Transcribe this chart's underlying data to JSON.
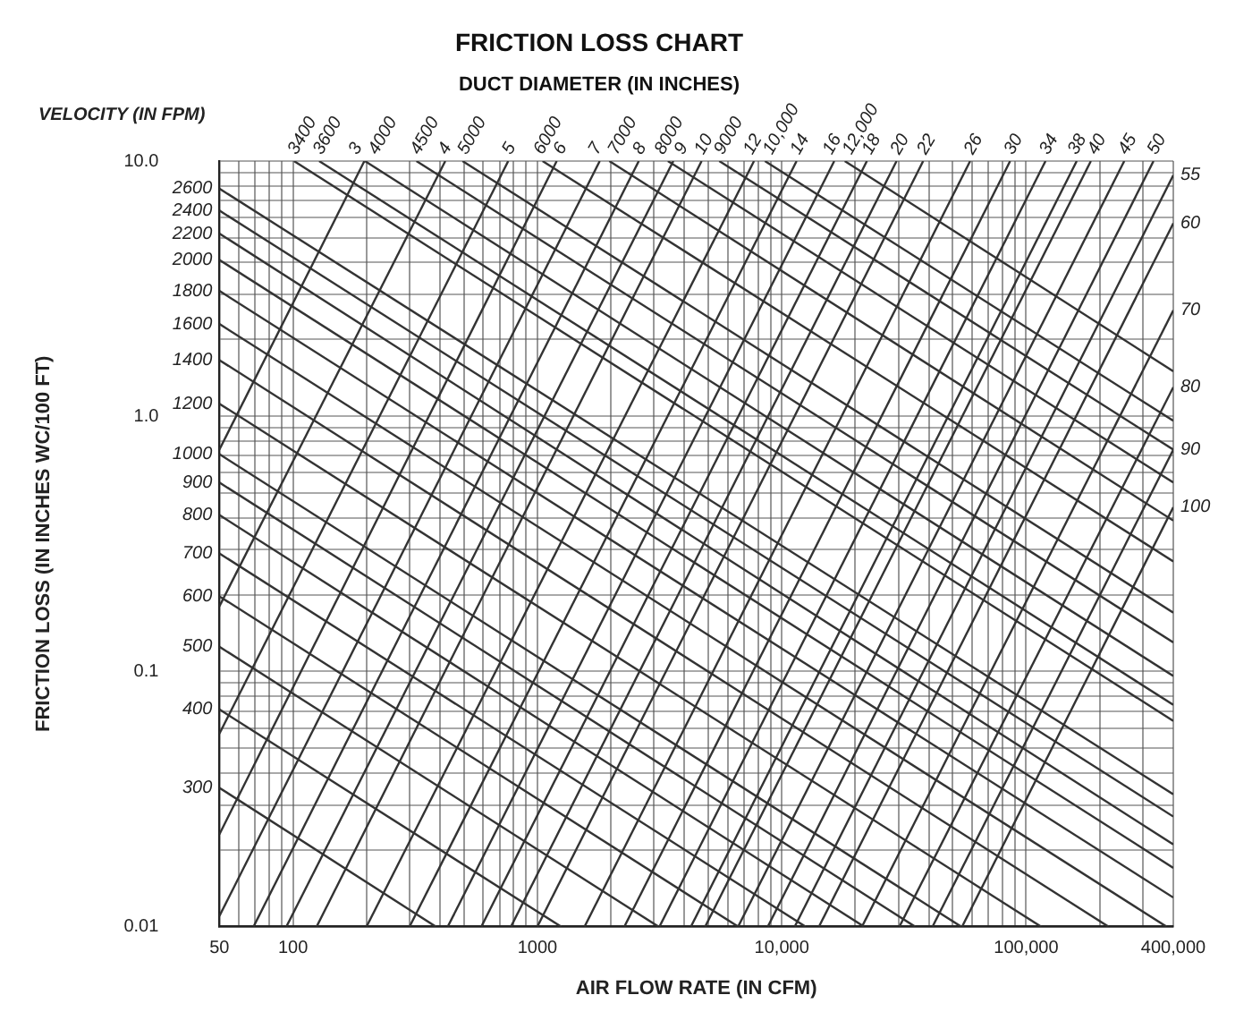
{
  "chart_data": {
    "type": "line",
    "title": "FRICTION LOSS CHART",
    "subtitle": "DUCT DIAMETER (IN INCHES)",
    "xlabel": "AIR FLOW RATE (IN CFM)",
    "ylabel": "FRICTION LOSS (IN INCHES WC/100 FT)",
    "annotations": [
      "VELOCITY (IN FPM)"
    ],
    "log": "xy",
    "grid": true,
    "marker": "none",
    "line_style": "solid",
    "xlim": [
      50,
      400000
    ],
    "ylim": [
      0.01,
      10
    ],
    "xticks": [
      50,
      {
        "value": 60,
        "label": null
      },
      {
        "value": 70,
        "label": null
      },
      {
        "value": 80,
        "label": null
      },
      {
        "value": 90,
        "label": null
      },
      100,
      {
        "value": 200,
        "label": null
      },
      {
        "value": 300,
        "label": null
      },
      {
        "value": 400,
        "label": null
      },
      {
        "value": 500,
        "label": null
      },
      {
        "value": 600,
        "label": null
      },
      {
        "value": 700,
        "label": null
      },
      {
        "value": 800,
        "label": null
      },
      {
        "value": 900,
        "label": null
      },
      1000,
      {
        "value": 2000,
        "label": null
      },
      {
        "value": 3000,
        "label": null
      },
      {
        "value": 4000,
        "label": null
      },
      {
        "value": 5000,
        "label": null
      },
      {
        "value": 6000,
        "label": null
      },
      {
        "value": 7000,
        "label": null
      },
      {
        "value": 8000,
        "label": null
      },
      {
        "value": 9000,
        "label": null
      },
      {
        "value": 10000,
        "label": "10,000"
      },
      {
        "value": 20000,
        "label": null
      },
      {
        "value": 30000,
        "label": null
      },
      {
        "value": 40000,
        "label": null
      },
      {
        "value": 50000,
        "label": null
      },
      {
        "value": 60000,
        "label": null
      },
      {
        "value": 70000,
        "label": null
      },
      {
        "value": 80000,
        "label": null
      },
      {
        "value": 90000,
        "label": null
      },
      {
        "value": 100000,
        "label": "100,000"
      },
      {
        "value": 200000,
        "label": null
      },
      {
        "value": 300000,
        "label": null
      },
      {
        "value": 400000,
        "label": "400,000"
      }
    ],
    "yticks": [
      0.01,
      {
        "value": 0.02,
        "label": null
      },
      {
        "value": 0.03,
        "label": null
      },
      {
        "value": 0.04,
        "label": null
      },
      {
        "value": 0.05,
        "label": null
      },
      {
        "value": 0.06,
        "label": null
      },
      {
        "value": 0.07,
        "label": null
      },
      {
        "value": 0.08,
        "label": null
      },
      {
        "value": 0.09,
        "label": null
      },
      0.1,
      {
        "value": 0.2,
        "label": null
      },
      {
        "value": 0.3,
        "label": null
      },
      {
        "value": 0.4,
        "label": null
      },
      {
        "value": 0.5,
        "label": null
      },
      {
        "value": 0.6,
        "label": null
      },
      {
        "value": 0.7,
        "label": null
      },
      {
        "value": 0.8,
        "label": null
      },
      {
        "value": 0.9,
        "label": null
      },
      {
        "value": 1,
        "label": "1.0"
      },
      {
        "value": 2,
        "label": null
      },
      {
        "value": 3,
        "label": null
      },
      {
        "value": 4,
        "label": null
      },
      {
        "value": 5,
        "label": null
      },
      {
        "value": 6,
        "label": null
      },
      {
        "value": 7,
        "label": null
      },
      {
        "value": 8,
        "label": null
      },
      {
        "value": 9,
        "label": null
      },
      {
        "value": 10,
        "label": "10.0"
      }
    ],
    "series": [
      {
        "name": "3",
        "color": "#333333",
        "x": [
          50,
          196
        ],
        "values": [
          0.74,
          10
        ]
      },
      {
        "name": "4",
        "color": "#333333",
        "x": [
          50,
          420
        ],
        "values": [
          0.18,
          10
        ]
      },
      {
        "name": "5",
        "color": "#333333",
        "x": [
          50,
          760
        ],
        "values": [
          0.057,
          10
        ]
      },
      {
        "name": "6",
        "color": "#333333",
        "x": [
          50,
          1200
        ],
        "values": [
          0.023,
          10
        ]
      },
      {
        "name": "7",
        "color": "#333333",
        "x": [
          50,
          1800
        ],
        "values": [
          0.011,
          10
        ]
      },
      {
        "name": "8",
        "color": "#333333",
        "x": [
          69,
          2600
        ],
        "values": [
          0.01,
          10
        ]
      },
      {
        "name": "9",
        "color": "#333333",
        "x": [
          94,
          3600
        ],
        "values": [
          0.01,
          10
        ]
      },
      {
        "name": "10",
        "color": "#333333",
        "x": [
          125,
          4700
        ],
        "values": [
          0.01,
          10
        ]
      },
      {
        "name": "12",
        "color": "#333333",
        "x": [
          200,
          7700
        ],
        "values": [
          0.01,
          10
        ]
      },
      {
        "name": "14",
        "color": "#333333",
        "x": [
          300,
          11500
        ],
        "values": [
          0.01,
          10
        ]
      },
      {
        "name": "16",
        "color": "#333333",
        "x": [
          430,
          16400
        ],
        "values": [
          0.01,
          10
        ]
      },
      {
        "name": "18",
        "color": "#333333",
        "x": [
          590,
          22300
        ],
        "values": [
          0.01,
          10
        ]
      },
      {
        "name": "20",
        "color": "#333333",
        "x": [
          780,
          29500
        ],
        "values": [
          0.01,
          10
        ]
      },
      {
        "name": "22",
        "color": "#333333",
        "x": [
          1000,
          37900
        ],
        "values": [
          0.01,
          10
        ]
      },
      {
        "name": "26",
        "color": "#333333",
        "x": [
          1560,
          59000
        ],
        "values": [
          0.01,
          10
        ]
      },
      {
        "name": "30",
        "color": "#333333",
        "x": [
          2270,
          86000
        ],
        "values": [
          0.01,
          10
        ]
      },
      {
        "name": "34",
        "color": "#333333",
        "x": [
          3160,
          120000
        ],
        "values": [
          0.01,
          10
        ]
      },
      {
        "name": "38",
        "color": "#333333",
        "x": [
          4250,
          161000
        ],
        "values": [
          0.01,
          10
        ]
      },
      {
        "name": "40",
        "color": "#333333",
        "x": [
          4860,
          184000
        ],
        "values": [
          0.01,
          10
        ]
      },
      {
        "name": "45",
        "color": "#333333",
        "x": [
          6630,
          252000
        ],
        "values": [
          0.01,
          10
        ]
      },
      {
        "name": "50",
        "color": "#333333",
        "x": [
          8770,
          332000
        ],
        "values": [
          0.01,
          10
        ]
      },
      {
        "name": "55",
        "color": "#333333",
        "x": [
          11300,
          400000
        ],
        "values": [
          0.01,
          8.8
        ]
      },
      {
        "name": "60",
        "color": "#333333",
        "x": [
          14200,
          400000
        ],
        "values": [
          0.01,
          5.7
        ]
      },
      {
        "name": "70",
        "color": "#333333",
        "x": [
          21300,
          400000
        ],
        "values": [
          0.01,
          2.6
        ]
      },
      {
        "name": "80",
        "color": "#333333",
        "x": [
          30300,
          400000
        ],
        "values": [
          0.01,
          1.3
        ]
      },
      {
        "name": "90",
        "color": "#333333",
        "x": [
          41400,
          400000
        ],
        "values": [
          0.01,
          0.74
        ]
      },
      {
        "name": "100",
        "color": "#333333",
        "x": [
          54700,
          400000
        ],
        "values": [
          0.01,
          0.44
        ]
      },
      {
        "name": "300",
        "color": "#333333",
        "x": [
          50,
          384
        ],
        "values": [
          0.035,
          0.01
        ]
      },
      {
        "name": "400",
        "color": "#333333",
        "x": [
          50,
          1250
        ],
        "values": [
          0.071,
          0.01
        ]
      },
      {
        "name": "500",
        "color": "#333333",
        "x": [
          50,
          3130
        ],
        "values": [
          0.125,
          0.01
        ]
      },
      {
        "name": "600",
        "color": "#333333",
        "x": [
          50,
          6630
        ],
        "values": [
          0.197,
          0.01
        ]
      },
      {
        "name": "700",
        "color": "#333333",
        "x": [
          50,
          12500
        ],
        "values": [
          0.29,
          0.01
        ]
      },
      {
        "name": "800",
        "color": "#333333",
        "x": [
          50,
          21700
        ],
        "values": [
          0.41,
          0.01
        ]
      },
      {
        "name": "900",
        "color": "#333333",
        "x": [
          50,
          35100
        ],
        "values": [
          0.55,
          0.01
        ]
      },
      {
        "name": "1000",
        "color": "#333333",
        "x": [
          50,
          54200
        ],
        "values": [
          0.71,
          0.01
        ]
      },
      {
        "name": "1200",
        "color": "#333333",
        "x": [
          50,
          115000
        ],
        "values": [
          1.12,
          0.01
        ]
      },
      {
        "name": "1400",
        "color": "#333333",
        "x": [
          50,
          217000
        ],
        "values": [
          1.66,
          0.01
        ]
      },
      {
        "name": "1600",
        "color": "#333333",
        "x": [
          50,
          375000
        ],
        "values": [
          2.3,
          0.01
        ]
      },
      {
        "name": "1800",
        "color": "#333333",
        "x": [
          50,
          400000
        ],
        "values": [
          3.1,
          0.013
        ]
      },
      {
        "name": "2000",
        "color": "#333333",
        "x": [
          50,
          400000
        ],
        "values": [
          4.1,
          0.017
        ]
      },
      {
        "name": "2200",
        "color": "#333333",
        "x": [
          50,
          400000
        ],
        "values": [
          5.2,
          0.021
        ]
      },
      {
        "name": "2400",
        "color": "#333333",
        "x": [
          50,
          400000
        ],
        "values": [
          6.4,
          0.027
        ]
      },
      {
        "name": "2600",
        "color": "#333333",
        "x": [
          50,
          400000
        ],
        "values": [
          7.8,
          0.033
        ]
      },
      {
        "name": "3400",
        "color": "#333333",
        "x": [
          101,
          400000
        ],
        "values": [
          10,
          0.064
        ]
      },
      {
        "name": "3600",
        "color": "#333333",
        "x": [
          128,
          400000
        ],
        "values": [
          10,
          0.074
        ]
      },
      {
        "name": "4000",
        "color": "#333333",
        "x": [
          197,
          400000
        ],
        "values": [
          10,
          0.096
        ]
      },
      {
        "name": "4500",
        "color": "#333333",
        "x": [
          320,
          400000
        ],
        "values": [
          10,
          0.13
        ]
      },
      {
        "name": "5000",
        "color": "#333333",
        "x": [
          494,
          400000
        ],
        "values": [
          10,
          0.17
        ]
      },
      {
        "name": "6000",
        "color": "#333333",
        "x": [
          1050,
          400000
        ],
        "values": [
          10,
          0.27
        ]
      },
      {
        "name": "7000",
        "color": "#333333",
        "x": [
          1970,
          400000
        ],
        "values": [
          10,
          0.39
        ]
      },
      {
        "name": "8000",
        "color": "#333333",
        "x": [
          3420,
          400000
        ],
        "values": [
          10,
          0.55
        ]
      },
      {
        "name": "9000",
        "color": "#333333",
        "x": [
          5550,
          400000
        ],
        "values": [
          10,
          0.74
        ]
      },
      {
        "name": "10,000",
        "color": "#333333",
        "x": [
          8530,
          400000
        ],
        "values": [
          10,
          0.96
        ]
      },
      {
        "name": "12,000",
        "color": "#333333",
        "x": [
          18100,
          400000
        ],
        "values": [
          10,
          1.5
        ]
      }
    ]
  }
}
